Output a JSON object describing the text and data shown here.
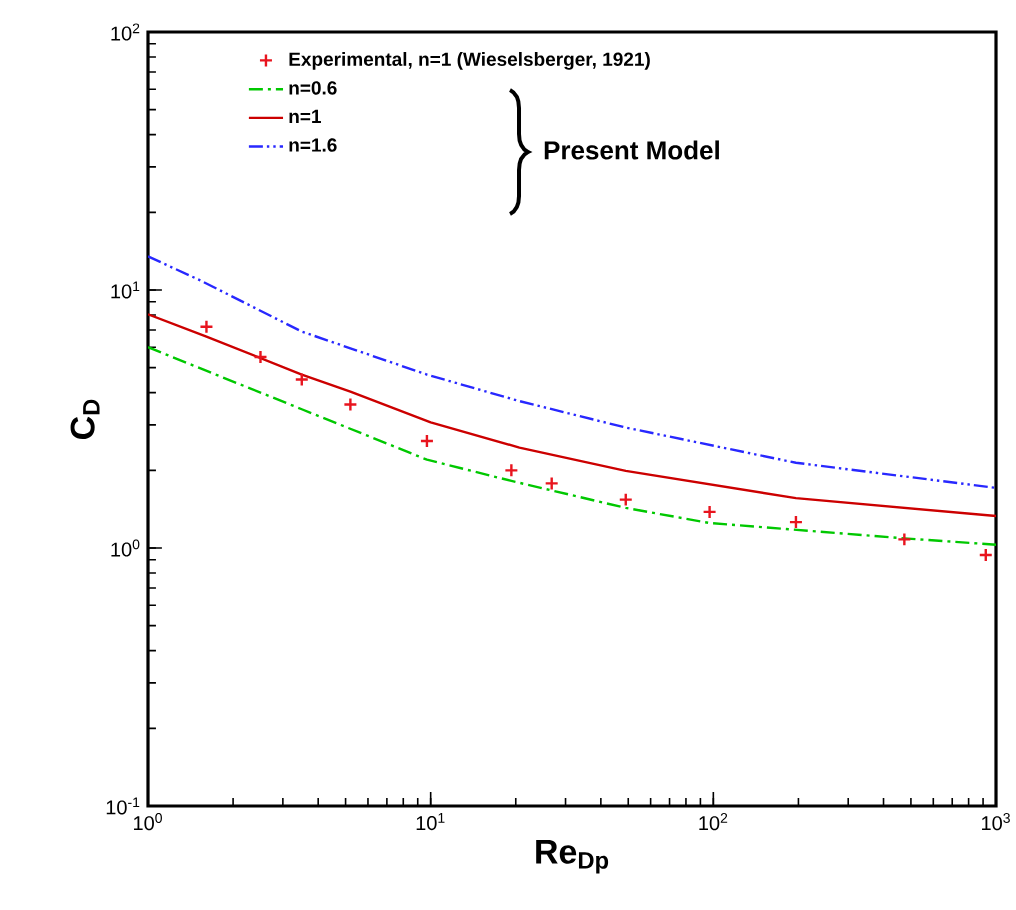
{
  "chart_data": {
    "type": "line",
    "xlabel": "Re$_{Dp}$",
    "ylabel": "C$_{D}$",
    "log": "xy",
    "xlim": [
      1,
      1000
    ],
    "ylim": [
      0.1,
      100
    ],
    "xticks": [
      {
        "value": 1,
        "label": "10$^{0}$"
      },
      {
        "value": 10,
        "label": "10$^{1}$"
      },
      {
        "value": 100,
        "label": "10$^{2}$"
      },
      {
        "value": 1000,
        "label": "10$^{3}$"
      }
    ],
    "yticks": [
      {
        "value": 0.1,
        "label": "10$^{-1}$"
      },
      {
        "value": 1,
        "label": "10$^{0}$"
      },
      {
        "value": 10,
        "label": "10$^{1}$"
      },
      {
        "value": 100,
        "label": "10$^{2}$"
      }
    ],
    "grid": false,
    "legend": "top",
    "series": [
      {
        "name": "Experimental, n=1 (Wieselsberger, 1921)",
        "type": "scatter",
        "marker": "cross",
        "color": "#e8141e",
        "x": [
          1.61,
          2.5,
          3.5,
          5.2,
          9.7,
          19.3,
          26.8,
          49,
          97,
          196,
          474,
          920
        ],
        "values": [
          7.2,
          5.5,
          4.5,
          3.6,
          2.6,
          2.0,
          1.78,
          1.54,
          1.38,
          1.26,
          1.08,
          0.94
        ]
      },
      {
        "name": "n=0.6",
        "line_style": "dashed",
        "color": "#00c800",
        "x": [
          1,
          3.5,
          9.7,
          19.3,
          49,
          97,
          474,
          1000
        ],
        "values": [
          6.0,
          3.45,
          2.2,
          1.82,
          1.43,
          1.25,
          1.09,
          1.03
        ]
      },
      {
        "name": "n=1",
        "line_style": "solid",
        "color": "#cc0000",
        "x": [
          1,
          1.61,
          3.5,
          5.2,
          10,
          20.6,
          49,
          196,
          1000
        ],
        "values": [
          8.05,
          6.6,
          4.7,
          4.04,
          3.07,
          2.45,
          1.99,
          1.56,
          1.33
        ]
      },
      {
        "name": "n=1.6",
        "line_style": "dotted",
        "color": "#2828ff",
        "x": [
          1,
          1.53,
          3.5,
          9.7,
          20.6,
          49,
          196,
          1000
        ],
        "values": [
          13.5,
          10.9,
          6.9,
          4.7,
          3.71,
          2.93,
          2.14,
          1.71
        ]
      }
    ],
    "annotations": [
      "Present Model"
    ]
  }
}
